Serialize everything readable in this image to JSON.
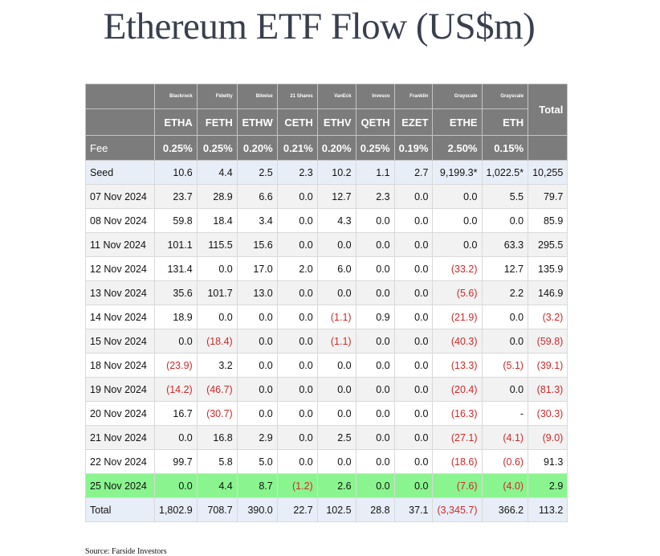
{
  "title": "Ethereum ETF Flow (US$m)",
  "source": "Source: Farside Investors",
  "colors": {
    "header_bg": "#7c7c7c",
    "highlight_row": "#8af58f",
    "negative_text": "#d02828",
    "seed_row_bg": "#e8eef8"
  },
  "chart_data": {
    "type": "table",
    "issuers": [
      "Blackrock",
      "Fidelity",
      "Bitwise",
      "21 Shares",
      "VanEck",
      "Invesco",
      "Franklin",
      "Grayscale",
      "Grayscale"
    ],
    "tickers": [
      "ETHA",
      "FETH",
      "ETHW",
      "CETH",
      "ETHV",
      "QETH",
      "EZET",
      "ETHE",
      "ETH"
    ],
    "total_label": "Total",
    "fee_label": "Fee",
    "fees": [
      "0.25%",
      "0.25%",
      "0.20%",
      "0.21%",
      "0.20%",
      "0.25%",
      "0.19%",
      "2.50%",
      "0.15%"
    ],
    "rows": [
      {
        "label": "Seed",
        "cells": [
          "10.6",
          "4.4",
          "2.5",
          "2.3",
          "10.2",
          "1.1",
          "2.7",
          "9,199.3*",
          "1,022.5*",
          "10,255"
        ]
      },
      {
        "label": "07 Nov 2024",
        "cells": [
          "23.7",
          "28.9",
          "6.6",
          "0.0",
          "12.7",
          "2.3",
          "0.0",
          "0.0",
          "5.5",
          "79.7"
        ]
      },
      {
        "label": "08 Nov 2024",
        "cells": [
          "59.8",
          "18.4",
          "3.4",
          "0.0",
          "4.3",
          "0.0",
          "0.0",
          "0.0",
          "0.0",
          "85.9"
        ]
      },
      {
        "label": "11 Nov 2024",
        "cells": [
          "101.1",
          "115.5",
          "15.6",
          "0.0",
          "0.0",
          "0.0",
          "0.0",
          "0.0",
          "63.3",
          "295.5"
        ]
      },
      {
        "label": "12 Nov 2024",
        "cells": [
          "131.4",
          "0.0",
          "17.0",
          "2.0",
          "6.0",
          "0.0",
          "0.0",
          "(33.2)",
          "12.7",
          "135.9"
        ]
      },
      {
        "label": "13 Nov 2024",
        "cells": [
          "35.6",
          "101.7",
          "13.0",
          "0.0",
          "0.0",
          "0.0",
          "0.0",
          "(5.6)",
          "2.2",
          "146.9"
        ]
      },
      {
        "label": "14 Nov 2024",
        "cells": [
          "18.9",
          "0.0",
          "0.0",
          "0.0",
          "(1.1)",
          "0.9",
          "0.0",
          "(21.9)",
          "0.0",
          "(3.2)"
        ]
      },
      {
        "label": "15 Nov 2024",
        "cells": [
          "0.0",
          "(18.4)",
          "0.0",
          "0.0",
          "(1.1)",
          "0.0",
          "0.0",
          "(40.3)",
          "0.0",
          "(59.8)"
        ]
      },
      {
        "label": "18 Nov 2024",
        "cells": [
          "(23.9)",
          "3.2",
          "0.0",
          "0.0",
          "0.0",
          "0.0",
          "0.0",
          "(13.3)",
          "(5.1)",
          "(39.1)"
        ]
      },
      {
        "label": "19 Nov 2024",
        "cells": [
          "(14.2)",
          "(46.7)",
          "0.0",
          "0.0",
          "0.0",
          "0.0",
          "0.0",
          "(20.4)",
          "0.0",
          "(81.3)"
        ]
      },
      {
        "label": "20 Nov 2024",
        "cells": [
          "16.7",
          "(30.7)",
          "0.0",
          "0.0",
          "0.0",
          "0.0",
          "0.0",
          "(16.3)",
          "-",
          "(30.3)"
        ]
      },
      {
        "label": "21 Nov 2024",
        "cells": [
          "0.0",
          "16.8",
          "2.9",
          "0.0",
          "2.5",
          "0.0",
          "0.0",
          "(27.1)",
          "(4.1)",
          "(9.0)"
        ]
      },
      {
        "label": "22 Nov 2024",
        "cells": [
          "99.7",
          "5.8",
          "5.0",
          "0.0",
          "0.0",
          "0.0",
          "0.0",
          "(18.6)",
          "(0.6)",
          "91.3"
        ]
      },
      {
        "label": "25 Nov 2024",
        "highlight": true,
        "cells": [
          "0.0",
          "4.4",
          "8.7",
          "(1.2)",
          "2.6",
          "0.0",
          "0.0",
          "(7.6)",
          "(4.0)",
          "2.9"
        ]
      },
      {
        "label": "Total",
        "cells": [
          "1,802.9",
          "708.7",
          "390.0",
          "22.7",
          "102.5",
          "28.8",
          "37.1",
          "(3,345.7)",
          "366.2",
          "113.2"
        ]
      }
    ]
  }
}
